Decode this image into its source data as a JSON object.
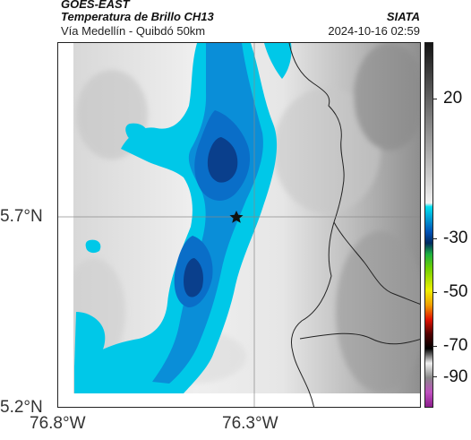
{
  "header": {
    "title": "GOES-EAST",
    "subtitle": "Temperatura de Brillo CH13",
    "region": "Vía Medellín - Quibdó 50km",
    "org": "SIATA",
    "timestamp": "2024-10-16 02:59"
  },
  "map": {
    "y_ticks": [
      "5.7°N",
      "5.2°N"
    ],
    "x_ticks": [
      "76.8°W",
      "76.3°W"
    ],
    "marker": "star-icon"
  },
  "colorbar": {
    "labels": [
      "20",
      "-30",
      "-50",
      "-70",
      "-90"
    ]
  },
  "colors": {
    "cloud_cyan": "#00c8e8",
    "cloud_blue": "#0a6ec8",
    "cloud_dark": "#0a3f8c",
    "land_light": "#f0f0f0",
    "land_gray": "#a0a0a0"
  }
}
